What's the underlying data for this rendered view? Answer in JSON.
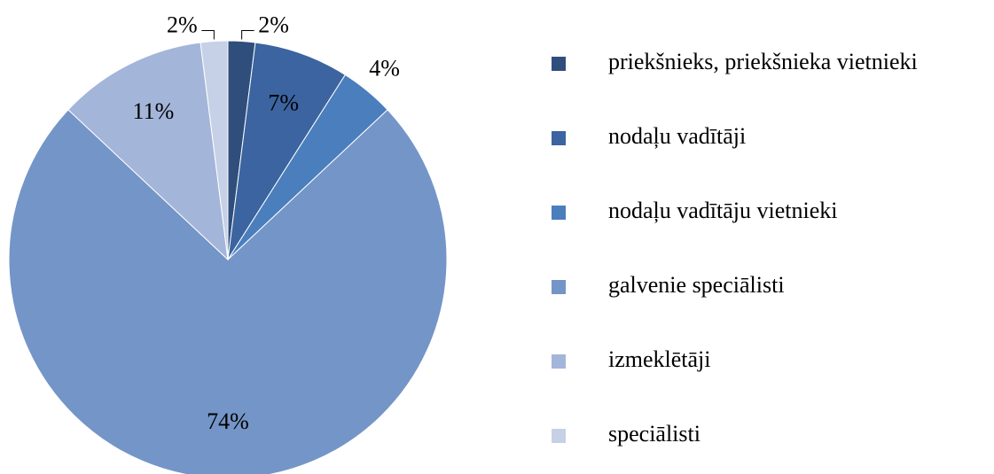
{
  "chart_data": {
    "type": "pie",
    "categories": [
      "priekšnieks, priekšnieka vietnieki",
      "nodaļu vadītāji",
      "nodaļu vadītāju vietnieki",
      "galvenie speciālisti",
      "izmeklētāji",
      "speciālisti"
    ],
    "values": [
      2,
      7,
      4,
      74,
      11,
      2
    ],
    "value_labels": [
      "2%",
      "7%",
      "4%",
      "74%",
      "11%",
      "2%"
    ],
    "colors": [
      "#2f4e7c",
      "#3b64a0",
      "#4a7ebd",
      "#7495c7",
      "#a3b5d9",
      "#c6d1e7"
    ],
    "legend": "right"
  }
}
